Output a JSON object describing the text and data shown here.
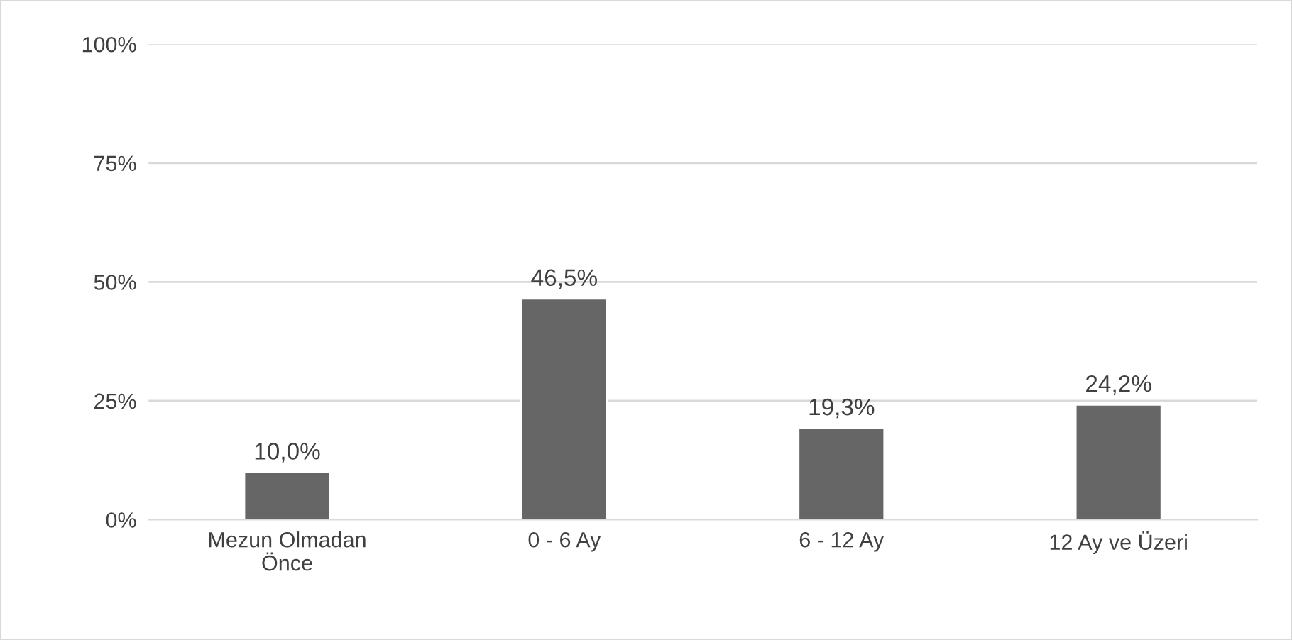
{
  "chart_data": {
    "type": "bar",
    "categories": [
      "Mezun Olmadan Önce",
      "0 - 6 Ay",
      "6 - 12 Ay",
      "12 Ay ve Üzeri"
    ],
    "values": [
      10.0,
      46.5,
      19.3,
      24.2
    ],
    "value_labels": [
      "10,0%",
      "46,5%",
      "19,3%",
      "24,2%"
    ],
    "color": "#666666",
    "ylim": [
      0,
      100
    ],
    "yticks": [
      {
        "value": 0,
        "label": "0%"
      },
      {
        "value": 25,
        "label": "25%"
      },
      {
        "value": 50,
        "label": "50%"
      },
      {
        "value": 75,
        "label": "75%"
      },
      {
        "value": 100,
        "label": "100%"
      }
    ],
    "grid": "y"
  }
}
